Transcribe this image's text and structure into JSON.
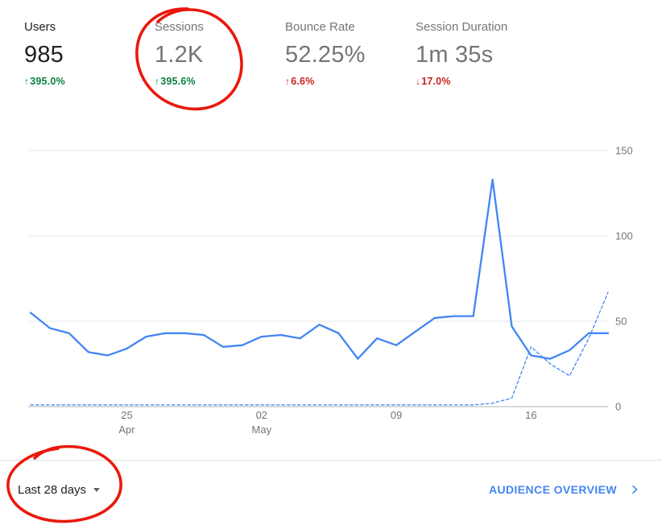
{
  "metrics": [
    {
      "label": "Users",
      "value": "985",
      "arrow": "↑",
      "direction": "up",
      "delta": "395.0%",
      "trend": "positive",
      "selected": true
    },
    {
      "label": "Sessions",
      "value": "1.2K",
      "arrow": "↑",
      "direction": "up",
      "delta": "395.6%",
      "trend": "positive",
      "selected": false
    },
    {
      "label": "Bounce Rate",
      "value": "52.25%",
      "arrow": "↑",
      "direction": "up",
      "delta": "6.6%",
      "trend": "negative",
      "selected": false
    },
    {
      "label": "Session Duration",
      "value": "1m 35s",
      "arrow": "↓",
      "direction": "down",
      "delta": "17.0%",
      "trend": "negative",
      "selected": false
    }
  ],
  "chart_data": {
    "type": "line",
    "title": "",
    "xlabel": "",
    "ylabel": "",
    "ylim": [
      0,
      150
    ],
    "y_ticks": [
      0,
      50,
      100,
      150
    ],
    "y_axis_side": "right",
    "grid": true,
    "line_color": "#4285f4",
    "x_ticks": [
      {
        "position": 5,
        "label": "25",
        "sublabel": "Apr"
      },
      {
        "position": 12,
        "label": "02",
        "sublabel": "May"
      },
      {
        "position": 19,
        "label": "09",
        "sublabel": ""
      },
      {
        "position": 26,
        "label": "16",
        "sublabel": ""
      }
    ],
    "series": [
      {
        "name": "current-period",
        "line_style": "solid",
        "values": [
          55,
          46,
          43,
          32,
          30,
          34,
          41,
          43,
          43,
          42,
          35,
          36,
          41,
          42,
          40,
          48,
          43,
          28,
          40,
          36,
          44,
          52,
          53,
          53,
          133,
          47,
          30,
          28,
          33,
          43,
          43
        ]
      },
      {
        "name": "previous-period",
        "line_style": "dashed",
        "values": [
          1,
          1,
          1,
          1,
          1,
          1,
          1,
          1,
          1,
          1,
          1,
          1,
          1,
          1,
          1,
          1,
          1,
          1,
          1,
          1,
          1,
          1,
          1,
          1,
          2,
          5,
          35,
          25,
          18,
          40,
          67
        ]
      }
    ]
  },
  "footer": {
    "date_range": "Last 28 days",
    "link": "AUDIENCE OVERVIEW"
  },
  "colors": {
    "accent_blue": "#4285f4",
    "positive_green": "#0b8043",
    "negative_red": "#c5221f",
    "annotation_red": "#e8190c",
    "grid": "#e9e9e9",
    "axis": "#b3b3b3",
    "text_primary": "#212121",
    "text_secondary": "#757575"
  }
}
